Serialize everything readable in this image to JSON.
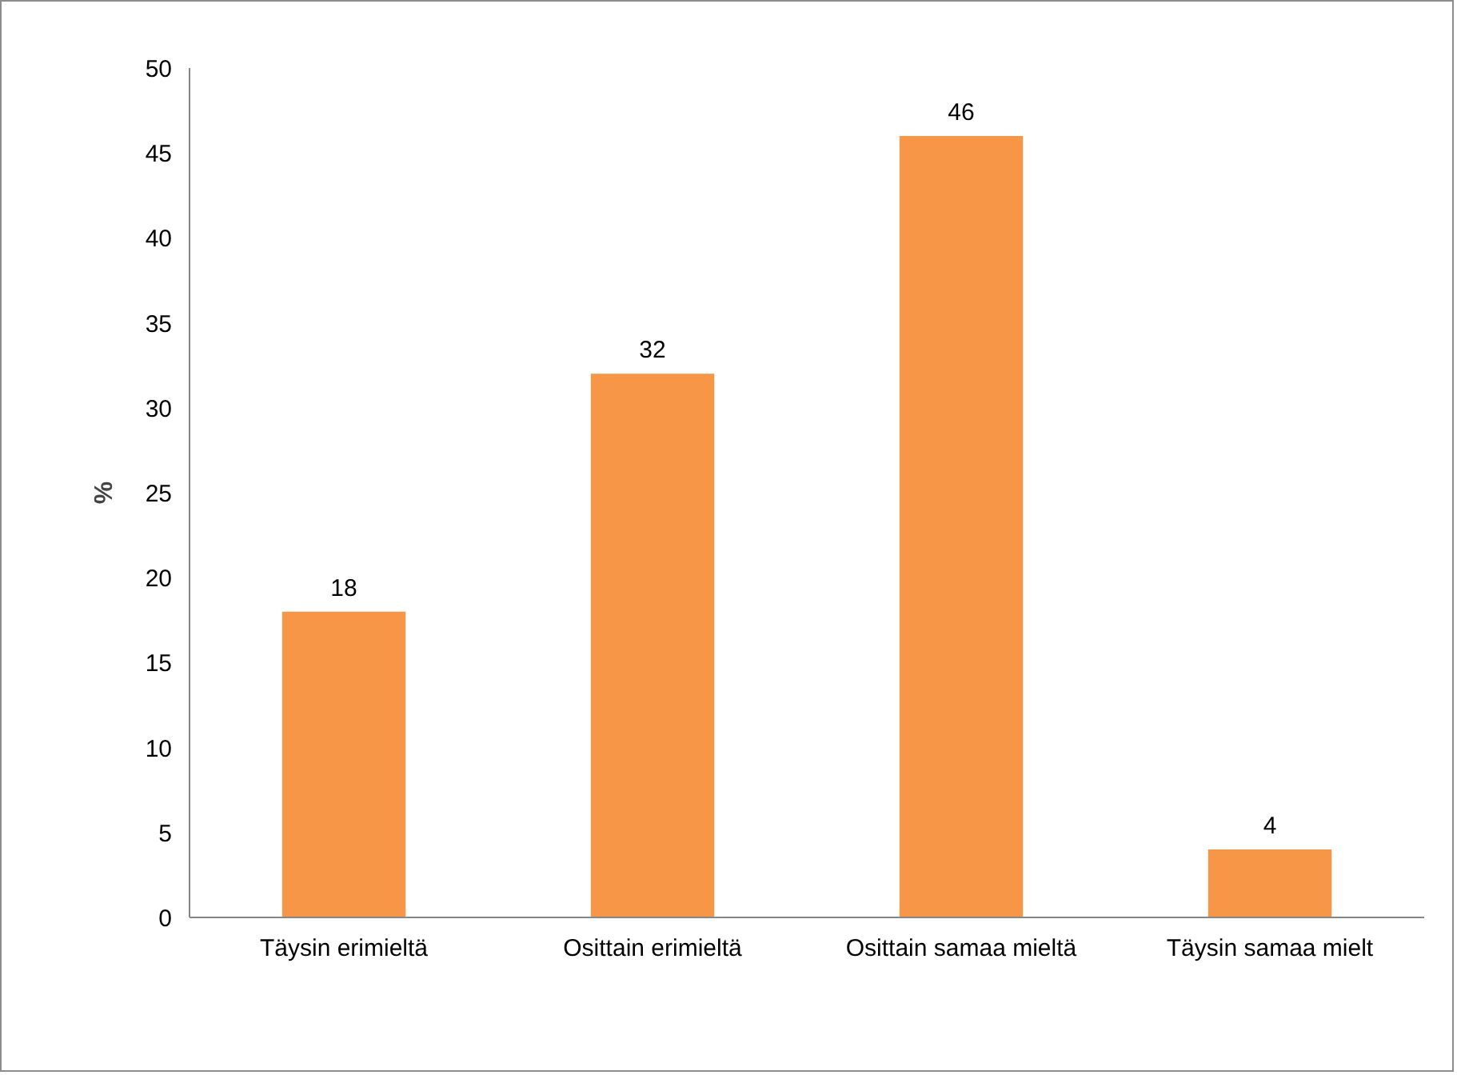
{
  "chart_data": {
    "type": "bar",
    "ylabel": "%",
    "categories": [
      "Täysin erimieltä",
      "Osittain erimieltä",
      "Osittain samaa mieltä",
      "Täysin samaa mielt"
    ],
    "values": [
      18,
      32,
      46,
      4
    ],
    "color": "#f79646",
    "ylim": [
      0,
      50
    ],
    "yticks": [
      0,
      5,
      10,
      15,
      20,
      25,
      30,
      35,
      40,
      45,
      50
    ],
    "data_labels": true,
    "grid": false
  }
}
